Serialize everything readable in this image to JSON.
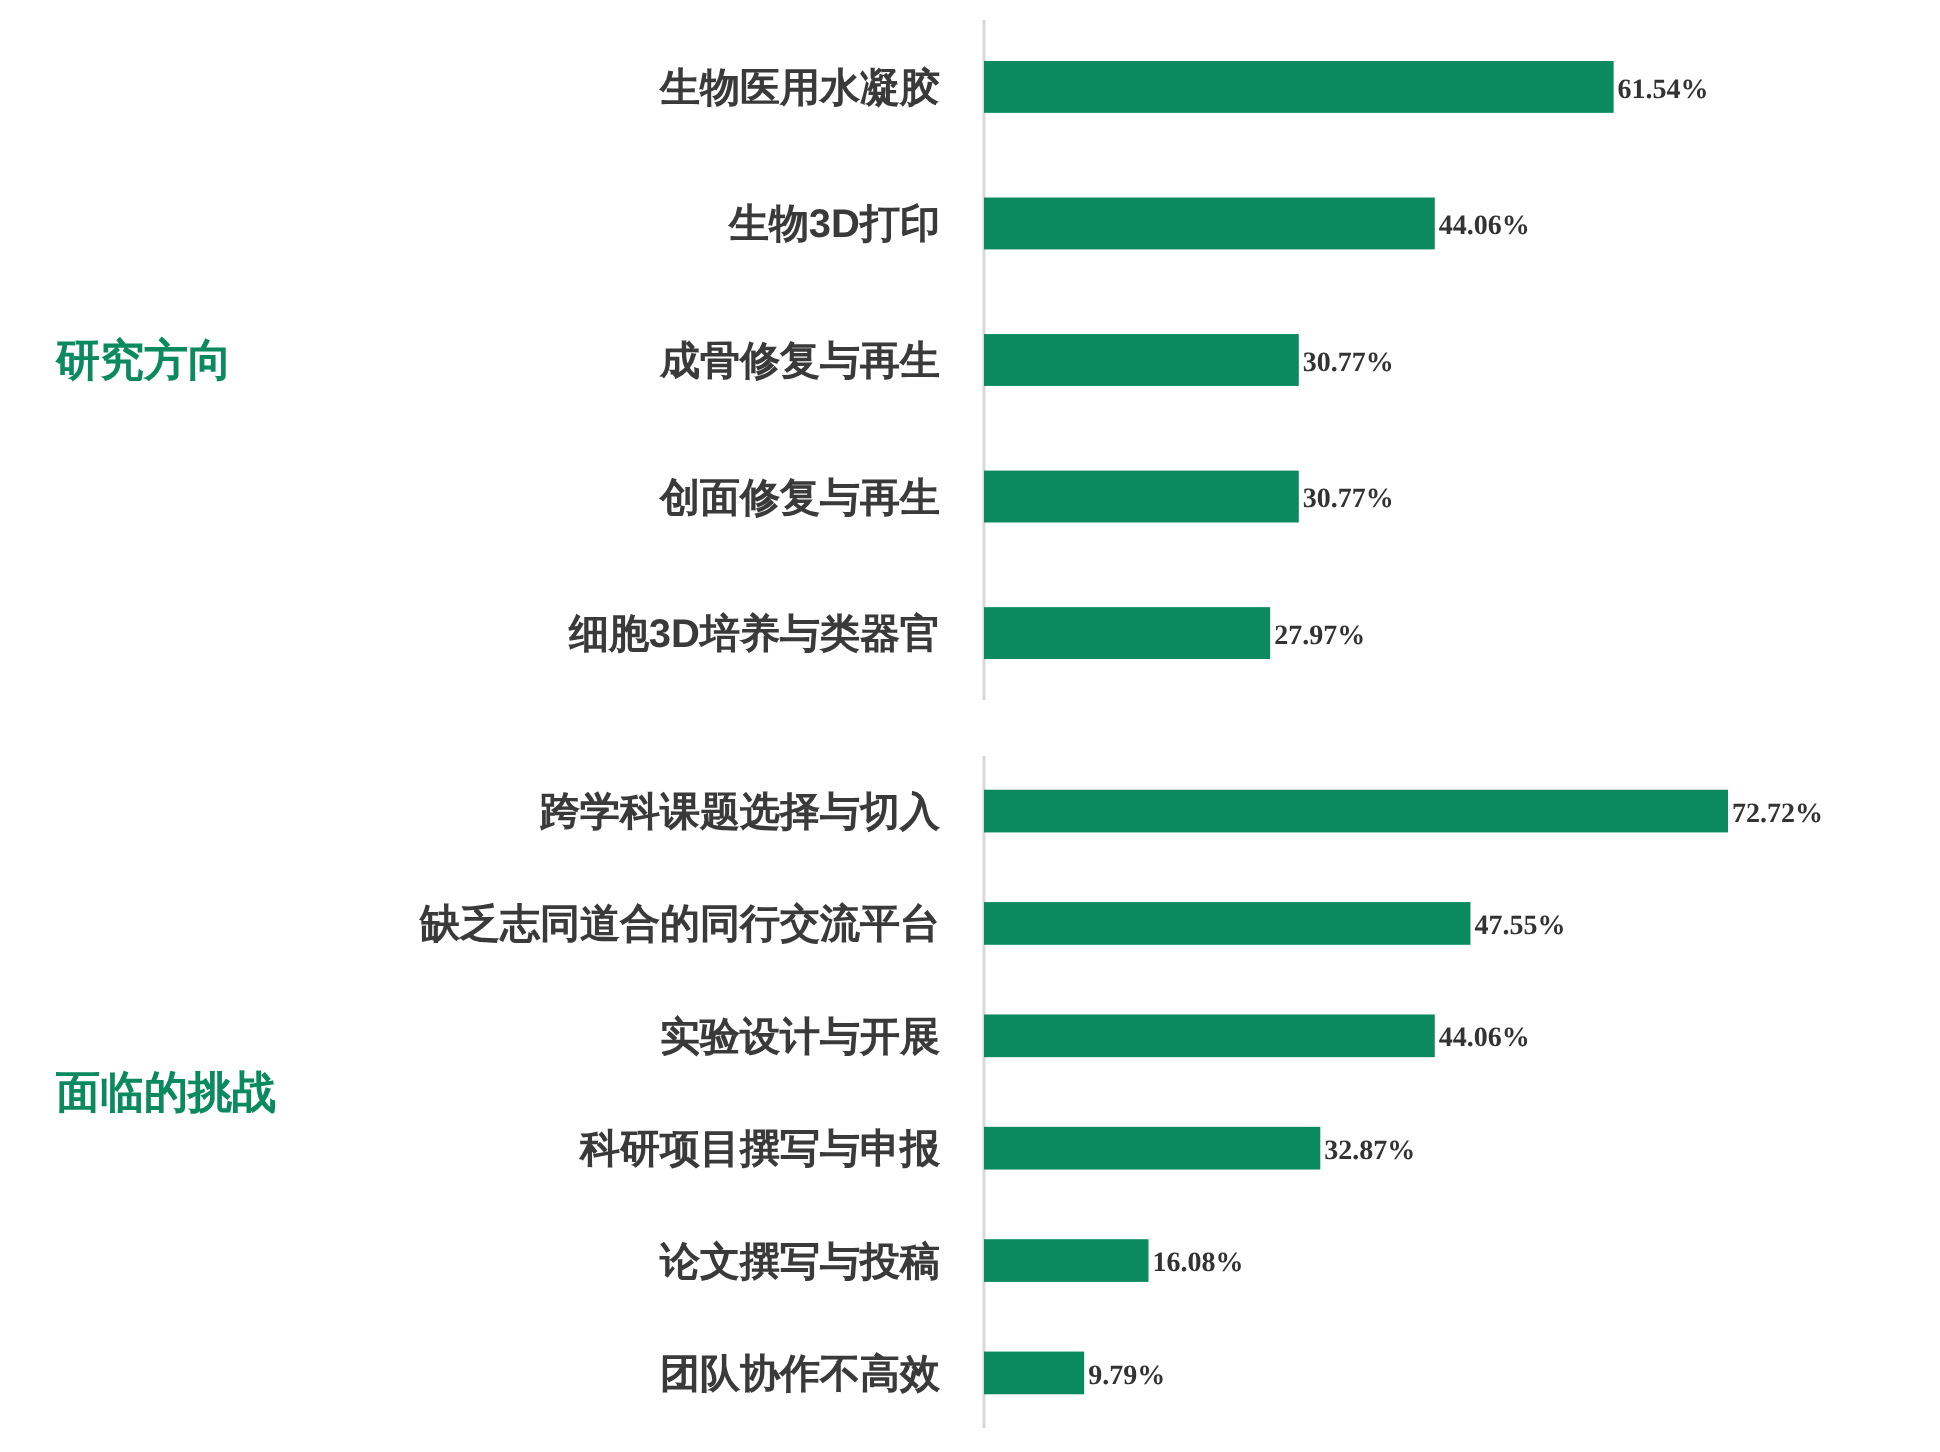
{
  "chart_data": [
    {
      "type": "bar",
      "orientation": "horizontal",
      "ylabel": "研究方向",
      "categories": [
        "生物医用水凝胶",
        "生物3D打印",
        "成骨修复与再生",
        "创面修复与再生",
        "细胞3D培养与类器官"
      ],
      "values": [
        61.54,
        44.06,
        30.77,
        30.77,
        27.97
      ],
      "value_labels": [
        "61.54%",
        "44.06%",
        "30.77%",
        "30.77%",
        "27.97%"
      ],
      "color": "#0b8a60"
    },
    {
      "type": "bar",
      "orientation": "horizontal",
      "ylabel": "面临的挑战",
      "categories": [
        "跨学科课题选择与切入",
        "缺乏志同道合的同行交流平台",
        "实验设计与开展",
        "科研项目撰写与申报",
        "论文撰写与投稿",
        "团队协作不高效"
      ],
      "values": [
        72.72,
        47.55,
        44.06,
        32.87,
        16.08,
        9.79
      ],
      "value_labels": [
        "72.72%",
        "47.55%",
        "44.06%",
        "32.87%",
        "16.08%",
        "9.79%"
      ],
      "color": "#0b8a60"
    }
  ]
}
